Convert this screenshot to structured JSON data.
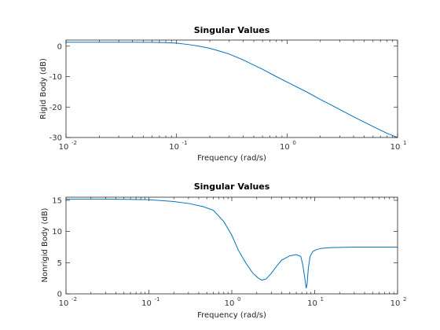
{
  "chart_data": [
    {
      "type": "line",
      "title": "Singular Values",
      "xlabel": "Frequency (rad/s)",
      "ylabel": "Rigid Body (dB)",
      "xscale": "log",
      "xlim": [
        0.01,
        10
      ],
      "ylim": [
        -30,
        2
      ],
      "xtick_exponents": [
        -2,
        -1,
        0,
        1
      ],
      "yticks": [
        -30,
        -20,
        -10,
        0
      ],
      "grid": false,
      "color": "#0072bd",
      "series": [
        {
          "x": [
            0.01,
            0.02,
            0.04,
            0.06,
            0.08,
            0.1,
            0.13,
            0.16,
            0.2,
            0.25,
            0.3,
            0.4,
            0.5,
            0.6,
            0.8,
            1.0,
            1.5,
            2.0,
            3.0,
            4.0,
            6.0,
            8.0,
            10.0
          ],
          "y": [
            1.3,
            1.3,
            1.3,
            1.25,
            1.15,
            1.0,
            0.5,
            0.0,
            -0.7,
            -1.7,
            -2.6,
            -4.5,
            -6.2,
            -7.6,
            -10.0,
            -11.8,
            -15.0,
            -17.5,
            -20.8,
            -23.2,
            -26.4,
            -28.6,
            -30.2
          ]
        }
      ]
    },
    {
      "type": "line",
      "title": "Singular Values",
      "xlabel": "Frequency (rad/s)",
      "ylabel": "Nonrigid Body (dB)",
      "xscale": "log",
      "xlim": [
        0.01,
        100
      ],
      "ylim": [
        0,
        15.5
      ],
      "xtick_exponents": [
        -2,
        -1,
        0,
        1,
        2
      ],
      "yticks": [
        0,
        5,
        10,
        15
      ],
      "grid": false,
      "color": "#0072bd",
      "series": [
        {
          "x": [
            0.01,
            0.03,
            0.1,
            0.2,
            0.3,
            0.45,
            0.6,
            0.8,
            1.0,
            1.2,
            1.5,
            1.8,
            2.1,
            2.3,
            2.6,
            3.0,
            3.5,
            4.0,
            5.0,
            6.0,
            6.8,
            7.2,
            7.6,
            7.9,
            8.1,
            8.4,
            8.8,
            9.5,
            10.5,
            12,
            15,
            20,
            30,
            50,
            100
          ],
          "y": [
            15.2,
            15.2,
            15.1,
            14.8,
            14.5,
            14.0,
            13.4,
            11.6,
            9.4,
            7.0,
            4.8,
            3.3,
            2.5,
            2.2,
            2.4,
            3.3,
            4.5,
            5.4,
            6.1,
            6.3,
            6.0,
            4.6,
            2.5,
            0.9,
            1.6,
            4.2,
            6.0,
            6.8,
            7.1,
            7.3,
            7.4,
            7.45,
            7.5,
            7.5,
            7.5
          ]
        }
      ]
    }
  ]
}
